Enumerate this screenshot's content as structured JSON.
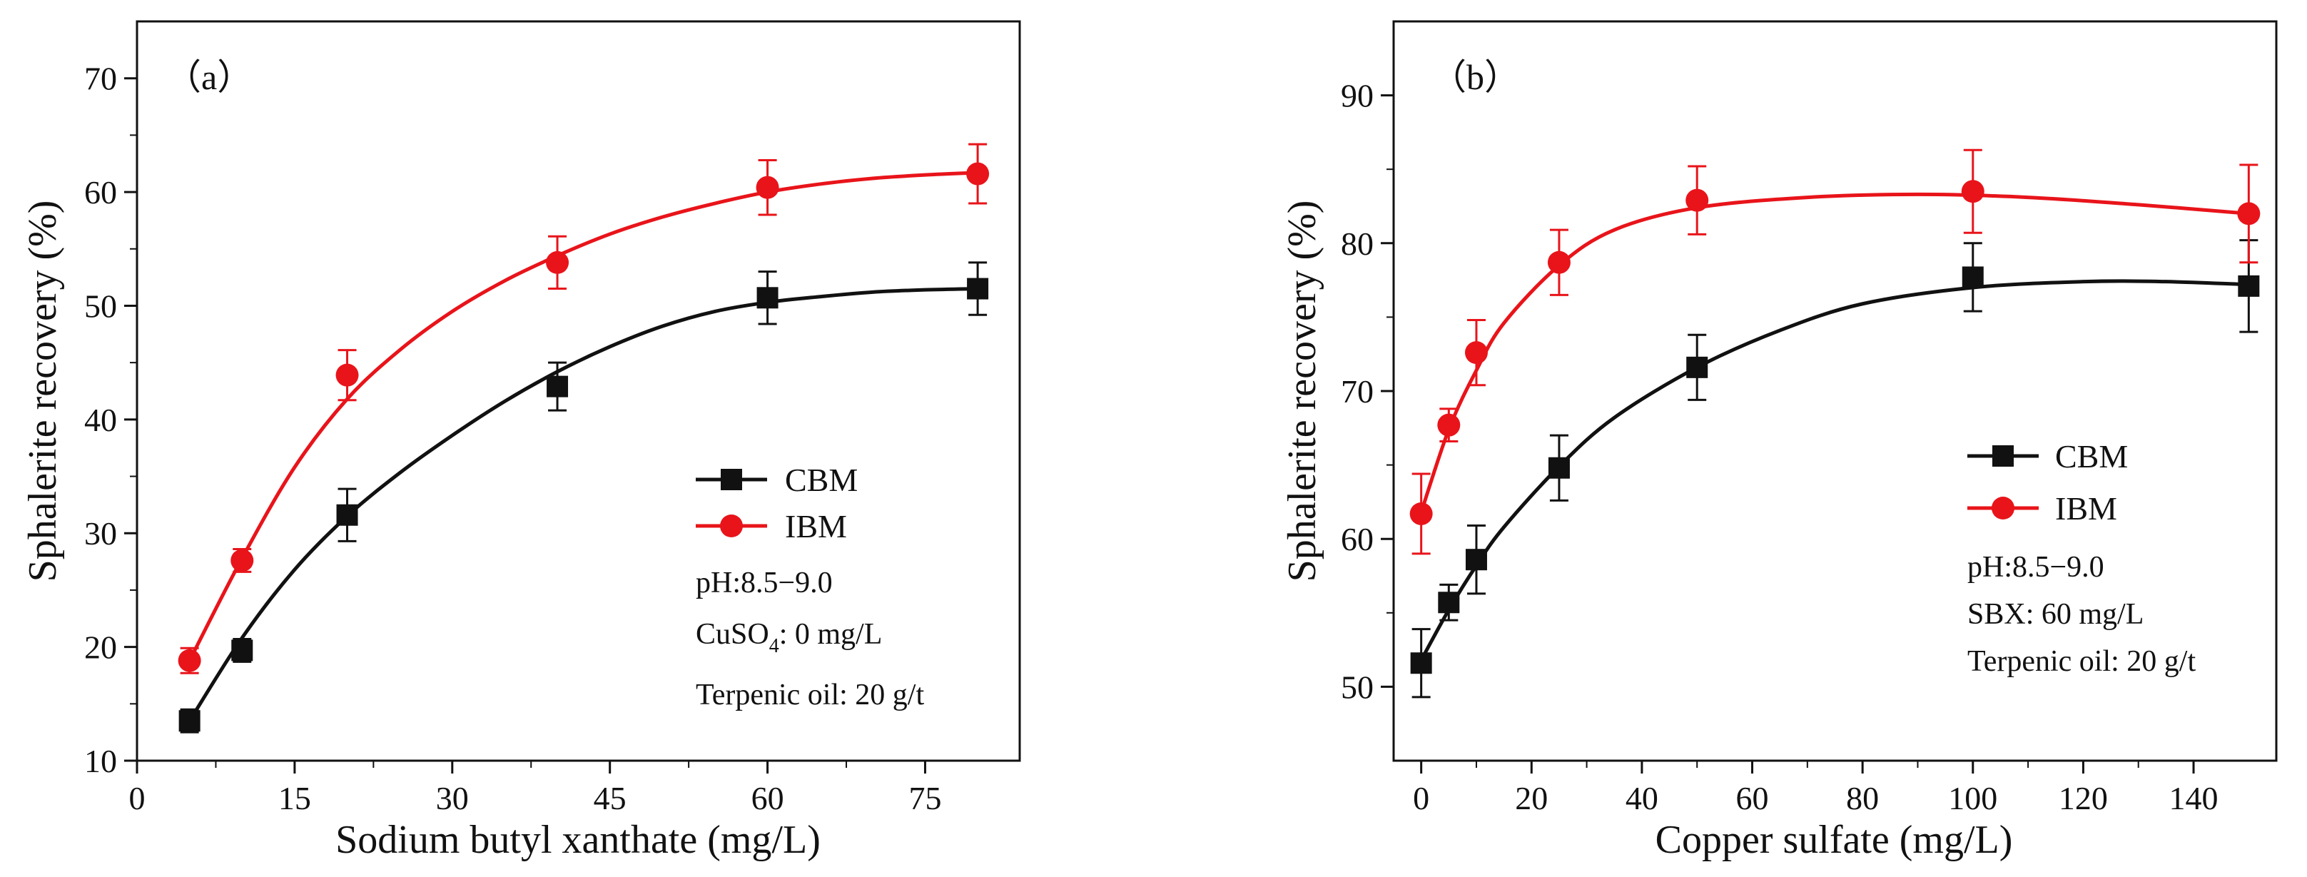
{
  "chart_data": [
    {
      "type": "scatter",
      "panel_label": "（a）",
      "xlabel": "Sodium butyl xanthate (mg/L)",
      "ylabel": "Sphalerite recovery (%)",
      "xlim": [
        0,
        84
      ],
      "ylim": [
        10,
        75
      ],
      "xticks": [
        0,
        15,
        30,
        45,
        60,
        75
      ],
      "yticks": [
        10,
        20,
        30,
        40,
        50,
        60,
        70
      ],
      "xtick_labels": [
        "0",
        "15",
        "30",
        "45",
        "60",
        "75"
      ],
      "ytick_labels": [
        "10",
        "20",
        "30",
        "40",
        "50",
        "60",
        "70"
      ],
      "grid": false,
      "legend_position": "right",
      "series": [
        {
          "name": "CBM",
          "color": "#111111",
          "marker": "square",
          "x": [
            5,
            10,
            20,
            40,
            60,
            80
          ],
          "values": [
            13.5,
            19.7,
            31.6,
            42.9,
            50.7,
            51.5
          ],
          "errors": [
            1.0,
            1.0,
            2.3,
            2.1,
            2.3,
            2.3
          ],
          "fit": [
            [
              5,
              13.5
            ],
            [
              10,
              20.8
            ],
            [
              15,
              26.8
            ],
            [
              20,
              31.5
            ],
            [
              25,
              35.3
            ],
            [
              30,
              38.6
            ],
            [
              35,
              41.6
            ],
            [
              40,
              44.2
            ],
            [
              45,
              46.4
            ],
            [
              50,
              48.2
            ],
            [
              55,
              49.5
            ],
            [
              60,
              50.3
            ],
            [
              65,
              50.8
            ],
            [
              70,
              51.2
            ],
            [
              75,
              51.4
            ],
            [
              80,
              51.5
            ]
          ]
        },
        {
          "name": "IBM",
          "color": "#e8141a",
          "marker": "circle",
          "x": [
            5,
            10,
            20,
            40,
            60,
            80
          ],
          "values": [
            18.8,
            27.6,
            43.9,
            53.8,
            60.4,
            61.6
          ],
          "errors": [
            1.1,
            1.0,
            2.2,
            2.3,
            2.4,
            2.6
          ],
          "fit": [
            [
              5,
              18.8
            ],
            [
              10,
              27.8
            ],
            [
              15,
              35.8
            ],
            [
              20,
              41.8
            ],
            [
              25,
              46.1
            ],
            [
              30,
              49.5
            ],
            [
              35,
              52.2
            ],
            [
              40,
              54.4
            ],
            [
              45,
              56.3
            ],
            [
              50,
              57.8
            ],
            [
              55,
              59.0
            ],
            [
              60,
              60.0
            ],
            [
              65,
              60.7
            ],
            [
              70,
              61.2
            ],
            [
              75,
              61.5
            ],
            [
              80,
              61.7
            ]
          ]
        }
      ],
      "annotations": {
        "line1": "pH:8.5−9.0",
        "line2_main": "CuSO",
        "line2_sub": "4",
        "line2_rest": ": 0 mg/L",
        "line3": "Terpenic oil: 20 g/t"
      }
    },
    {
      "type": "scatter",
      "panel_label": "（b）",
      "xlabel": "Copper sulfate (mg/L)",
      "ylabel": "Sphalerite recovery (%)",
      "xlim": [
        -5,
        155
      ],
      "ylim": [
        45,
        95
      ],
      "xticks": [
        0,
        20,
        40,
        60,
        80,
        100,
        120,
        140
      ],
      "yticks": [
        50,
        60,
        70,
        80,
        90
      ],
      "xtick_labels": [
        "0",
        "20",
        "40",
        "60",
        "80",
        "100",
        "120",
        "140"
      ],
      "ytick_labels": [
        "50",
        "60",
        "70",
        "80",
        "90"
      ],
      "grid": false,
      "legend_position": "right",
      "series": [
        {
          "name": "CBM",
          "color": "#111111",
          "marker": "square",
          "x": [
            0,
            5,
            10,
            25,
            50,
            100,
            150
          ],
          "values": [
            51.6,
            55.7,
            58.6,
            64.8,
            71.6,
            77.7,
            77.1
          ],
          "errors": [
            2.3,
            1.2,
            2.3,
            2.2,
            2.2,
            2.3,
            3.1
          ],
          "fit": [
            [
              0,
              51.8
            ],
            [
              5,
              55.2
            ],
            [
              10,
              58.2
            ],
            [
              15,
              60.8
            ],
            [
              25,
              64.9
            ],
            [
              35,
              68.2
            ],
            [
              50,
              71.6
            ],
            [
              65,
              74.1
            ],
            [
              80,
              75.9
            ],
            [
              100,
              77.0
            ],
            [
              120,
              77.4
            ],
            [
              135,
              77.4
            ],
            [
              150,
              77.2
            ]
          ]
        },
        {
          "name": "IBM",
          "color": "#e8141a",
          "marker": "circle",
          "x": [
            0,
            5,
            10,
            25,
            50,
            100,
            150
          ],
          "values": [
            61.7,
            67.7,
            72.6,
            78.7,
            82.9,
            83.5,
            82.0
          ],
          "errors": [
            2.7,
            1.1,
            2.2,
            2.2,
            2.3,
            2.8,
            3.3
          ],
          "fit": [
            [
              0,
              61.8
            ],
            [
              5,
              67.4
            ],
            [
              10,
              71.4
            ],
            [
              15,
              74.6
            ],
            [
              25,
              78.5
            ],
            [
              35,
              80.9
            ],
            [
              50,
              82.4
            ],
            [
              70,
              83.1
            ],
            [
              90,
              83.3
            ],
            [
              110,
              83.1
            ],
            [
              130,
              82.6
            ],
            [
              150,
              82.0
            ]
          ]
        }
      ],
      "annotations": {
        "line1": "pH:8.5−9.0",
        "line2": "SBX: 60 mg/L",
        "line3": "Terpenic oil: 20 g/t"
      }
    }
  ]
}
